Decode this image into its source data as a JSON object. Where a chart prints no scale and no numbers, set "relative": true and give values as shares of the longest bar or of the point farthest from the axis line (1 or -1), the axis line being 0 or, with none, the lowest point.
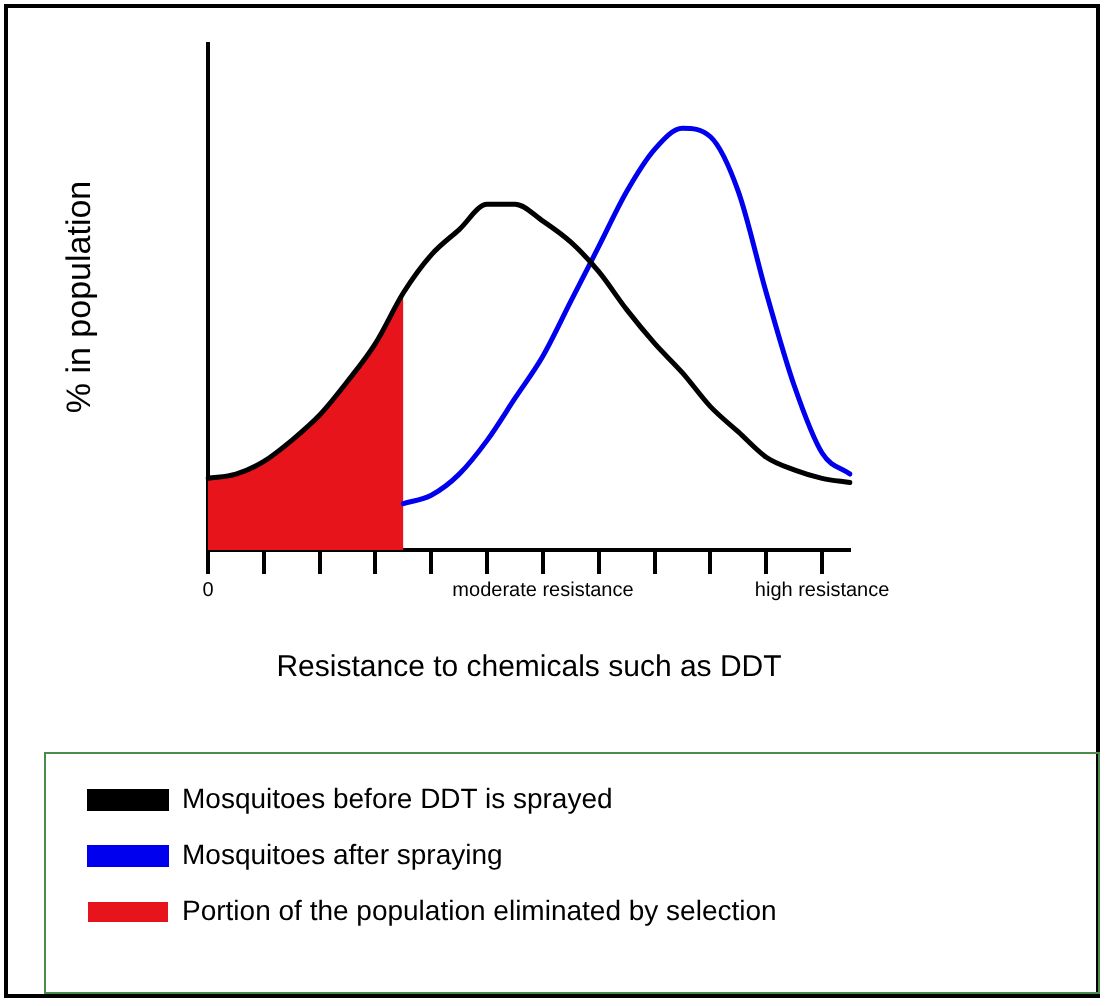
{
  "chart_data": {
    "type": "line",
    "relative": true,
    "xlabel": "Resistance to chemicals such as DDT",
    "ylabel": "% in population",
    "categories": [
      "0",
      null,
      null,
      null,
      null,
      null,
      null,
      null,
      null,
      null,
      null,
      null,
      "moderate resistance",
      null,
      null,
      null,
      null,
      null,
      null,
      null,
      null,
      null,
      "high resistance",
      null
    ],
    "series": [
      {
        "name": "Mosquitoes before DDT is sprayed",
        "color": "#000000",
        "values": [
          0.17,
          0.18,
          0.21,
          0.26,
          0.32,
          0.4,
          0.49,
          0.61,
          0.7,
          0.76,
          0.82,
          0.82,
          0.78,
          0.73,
          0.66,
          0.57,
          0.49,
          0.42,
          0.34,
          0.28,
          0.22,
          0.19,
          0.17,
          0.16
        ]
      },
      {
        "name": "Mosquitoes after spraying",
        "color": "#0000ee",
        "values": [
          null,
          null,
          null,
          null,
          null,
          null,
          null,
          0.11,
          0.13,
          0.18,
          0.26,
          0.36,
          0.46,
          0.59,
          0.72,
          0.85,
          0.95,
          1.0,
          0.98,
          0.85,
          0.61,
          0.39,
          0.23,
          0.18
        ]
      },
      {
        "name": "Portion of the population eliminated by selection",
        "type": "area",
        "color": "#e8141c",
        "values": [
          0.17,
          0.18,
          0.21,
          0.26,
          0.32,
          0.4,
          0.49,
          0.61,
          null,
          null,
          null,
          null,
          null,
          null,
          null,
          null,
          null,
          null,
          null,
          null,
          null,
          null,
          null,
          null
        ]
      }
    ],
    "legend": "bottom",
    "marker": "none",
    "line_style": "solid"
  }
}
